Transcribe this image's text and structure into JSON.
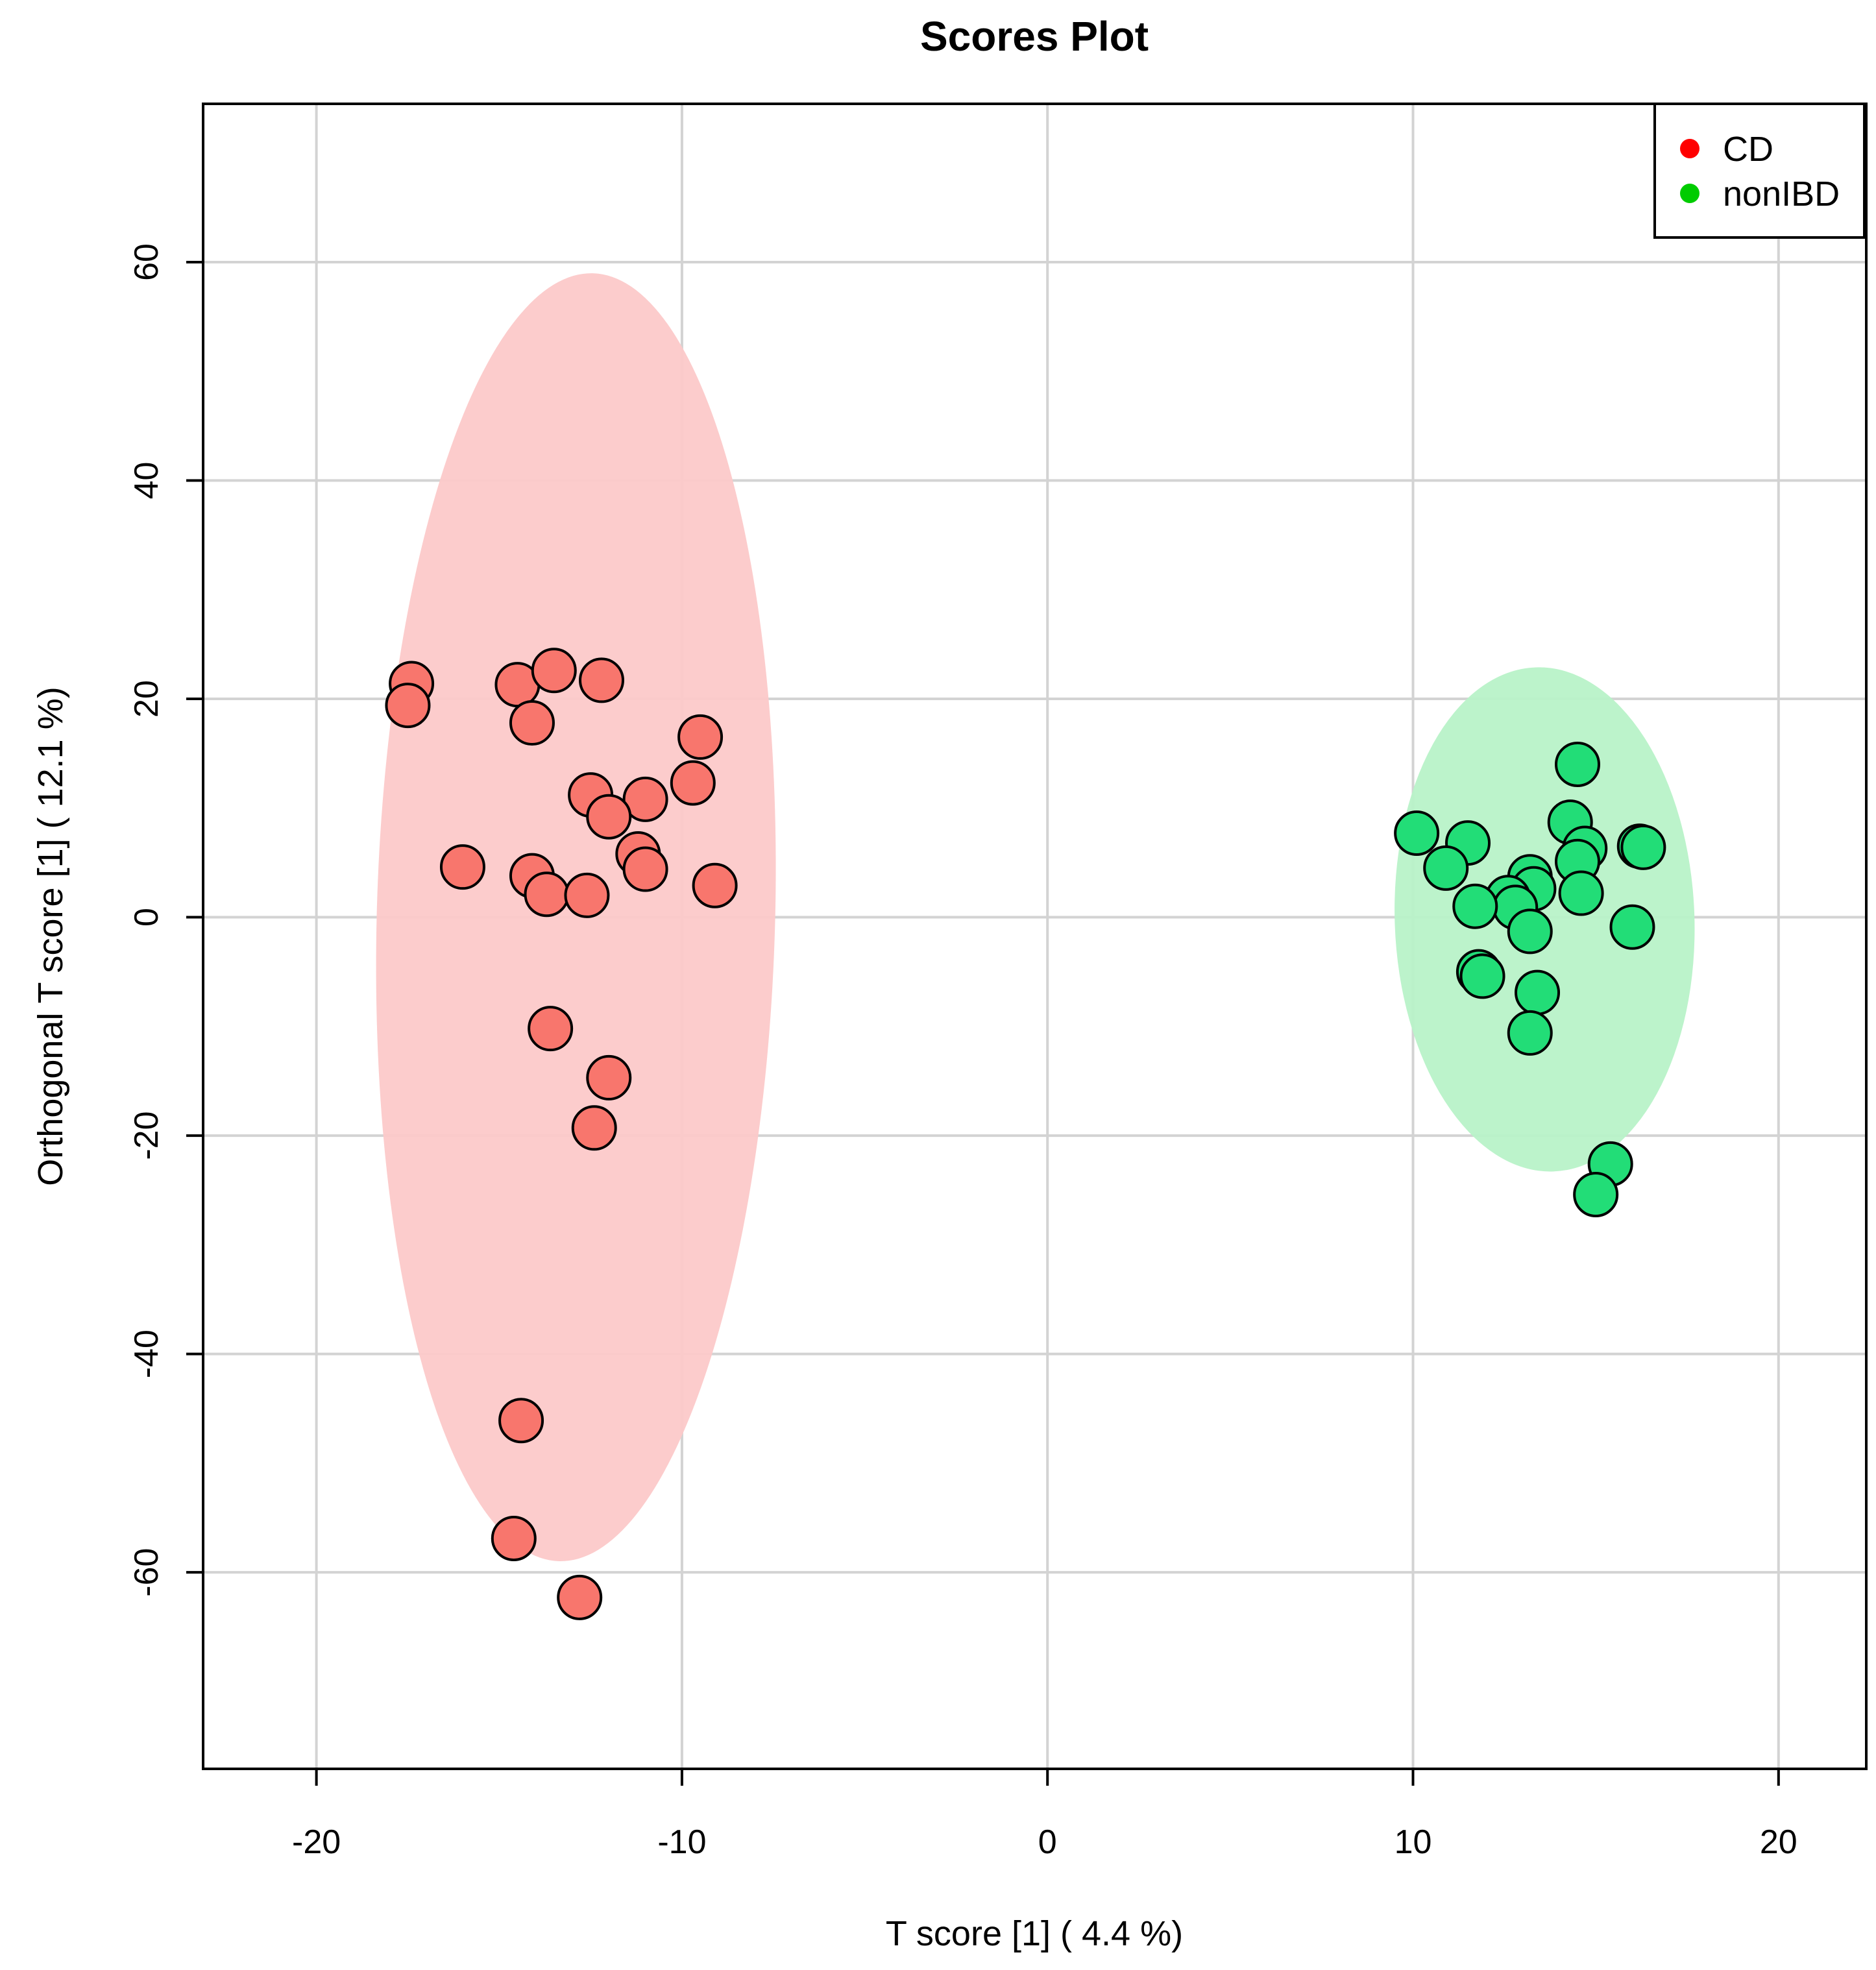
{
  "chart_data": {
    "type": "scatter",
    "title": "Scores Plot",
    "xlabel": "T score [1] ( 4.4 %)",
    "ylabel": "Orthogonal T score [1] ( 12.1 %)",
    "xlim": [
      -23.1,
      22.4
    ],
    "ylim": [
      -78,
      74.5
    ],
    "xticks": [
      -20,
      -10,
      0,
      10,
      20
    ],
    "yticks": [
      -60,
      -40,
      -20,
      0,
      20,
      40,
      60
    ],
    "grid": true,
    "legend_position": "top-right",
    "series": [
      {
        "name": "CD",
        "legend_color": "#ff0000",
        "point_color": "#f8766d",
        "ellipse_color": "#fcc9c9",
        "ellipse": {
          "cx": -12.9,
          "cy": 0,
          "rx": 5.45,
          "ry": 59,
          "angle_deg": 1.5
        },
        "points": [
          [
            -17.4,
            21.4
          ],
          [
            -17.5,
            19.4
          ],
          [
            -14.5,
            21.3
          ],
          [
            -13.5,
            22.6
          ],
          [
            -12.2,
            21.7
          ],
          [
            -14.1,
            17.8
          ],
          [
            -9.5,
            16.5
          ],
          [
            -12.5,
            11.2
          ],
          [
            -9.7,
            12.3
          ],
          [
            -11.0,
            10.8
          ],
          [
            -12.0,
            9.2
          ],
          [
            -16.0,
            4.6
          ],
          [
            -14.1,
            3.8
          ],
          [
            -11.2,
            5.8
          ],
          [
            -11.0,
            4.4
          ],
          [
            -13.7,
            2.1
          ],
          [
            -12.6,
            2.0
          ],
          [
            -9.1,
            2.9
          ],
          [
            -13.6,
            -10.2
          ],
          [
            -12.0,
            -14.7
          ],
          [
            -12.4,
            -19.3
          ],
          [
            -14.4,
            -46.1
          ],
          [
            -14.6,
            -56.9
          ],
          [
            -12.8,
            -62.3
          ]
        ]
      },
      {
        "name": "nonIBD",
        "legend_color": "#00cc00",
        "point_color": "#22dd77",
        "ellipse_color": "#b8f2c8",
        "ellipse": {
          "cx": 13.6,
          "cy": -0.2,
          "rx": 4.1,
          "ry": 23.1,
          "angle_deg": -2
        },
        "points": [
          [
            14.5,
            14.0
          ],
          [
            14.3,
            8.7
          ],
          [
            10.1,
            7.7
          ],
          [
            11.5,
            6.8
          ],
          [
            14.7,
            6.3
          ],
          [
            16.2,
            6.5
          ],
          [
            16.3,
            6.4
          ],
          [
            10.9,
            4.5
          ],
          [
            14.5,
            5.1
          ],
          [
            13.2,
            3.7
          ],
          [
            13.3,
            2.6
          ],
          [
            12.6,
            1.8
          ],
          [
            12.8,
            0.9
          ],
          [
            11.7,
            1.0
          ],
          [
            14.6,
            2.2
          ],
          [
            13.2,
            -1.3
          ],
          [
            16.0,
            -0.9
          ],
          [
            11.8,
            -5.0
          ],
          [
            11.9,
            -5.4
          ],
          [
            13.4,
            -6.9
          ],
          [
            13.2,
            -10.6
          ],
          [
            15.4,
            -22.6
          ],
          [
            15.0,
            -25.4
          ]
        ]
      }
    ]
  }
}
